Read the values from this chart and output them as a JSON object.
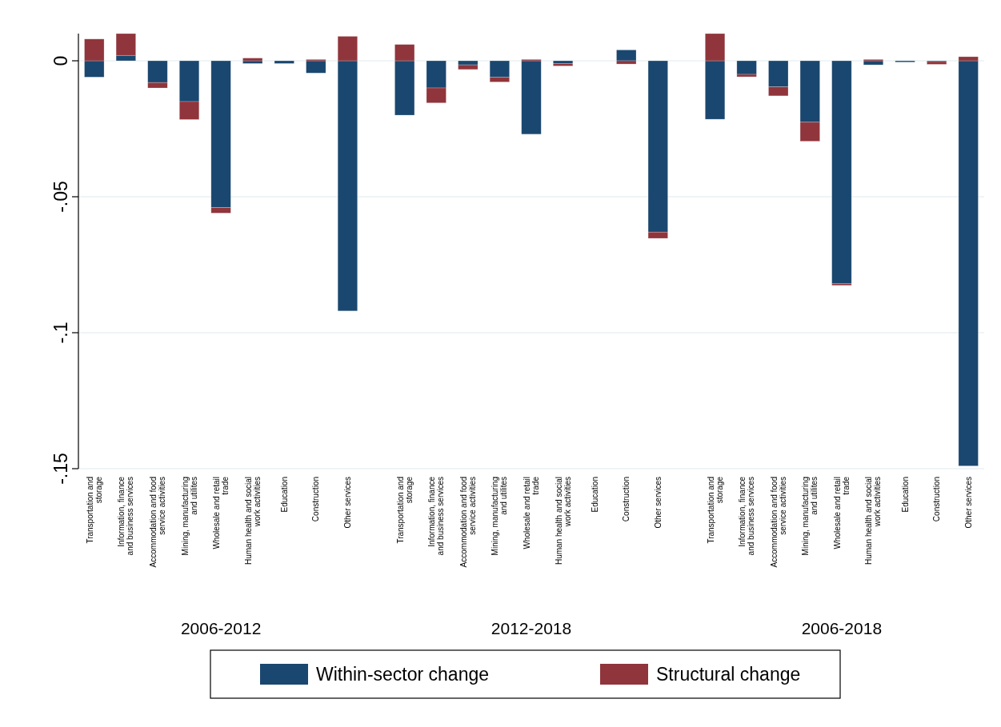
{
  "chart_data": {
    "type": "bar",
    "stacked": true,
    "categories": [
      "Transportation and storage",
      "Information, finance and business services",
      "Accommodation and food service activities",
      "Mining, manufacturing and utilites",
      "Wholesale and retail trade",
      "Human health and social work activities",
      "Education",
      "Construction",
      "Other services",
      "Transportation and storage",
      "Information, finance and business services",
      "Accommodation and food service activities",
      "Mining, manufacturing and utilites",
      "Wholesale and retail trade",
      "Human health and social work activities",
      "Education",
      "Construction",
      "Other services",
      "Transportation and storage",
      "Information, finance and business services",
      "Accommodation and food service activities",
      "Mining, manufacturing and utilites",
      "Wholesale and retail trade",
      "Human health and social work activities",
      "Education",
      "Construction",
      "Other services"
    ],
    "series": [
      {
        "name": "Within-sector change",
        "color": "#1a476f",
        "values": [
          -0.006,
          0.002,
          -0.008,
          -0.015,
          -0.054,
          -0.001,
          -0.001,
          -0.0045,
          -0.092,
          -0.02,
          -0.01,
          -0.0015,
          -0.006,
          -0.027,
          -0.001,
          0,
          0.004,
          -0.063,
          -0.0215,
          -0.005,
          -0.0096,
          -0.0226,
          -0.082,
          -0.0015,
          -0.0005,
          -0.0003,
          -0.149
        ]
      },
      {
        "name": "Structural change",
        "color": "#90353b",
        "values": [
          0.008,
          0.008,
          -0.002,
          -0.0066,
          -0.002,
          0.001,
          0,
          0.0005,
          0.009,
          0.006,
          -0.0055,
          -0.0017,
          -0.0018,
          0.0005,
          -0.0009,
          0,
          -0.0012,
          -0.0023,
          0.01,
          -0.0009,
          -0.0033,
          -0.007,
          -0.0006,
          0.0005,
          0,
          -0.001,
          0.0015
        ]
      }
    ],
    "ylim": [
      -0.15,
      0.01
    ],
    "yticks": [
      {
        "value": 0,
        "label": "0"
      },
      {
        "value": -0.05,
        "label": "-.05"
      },
      {
        "value": -0.1,
        "label": "-.1"
      },
      {
        "value": -0.15,
        "label": "-.15"
      }
    ],
    "grid": "y",
    "legend": "bottom",
    "annotations": [
      "2006-2012",
      "2012-2018",
      "2006-2018"
    ]
  }
}
